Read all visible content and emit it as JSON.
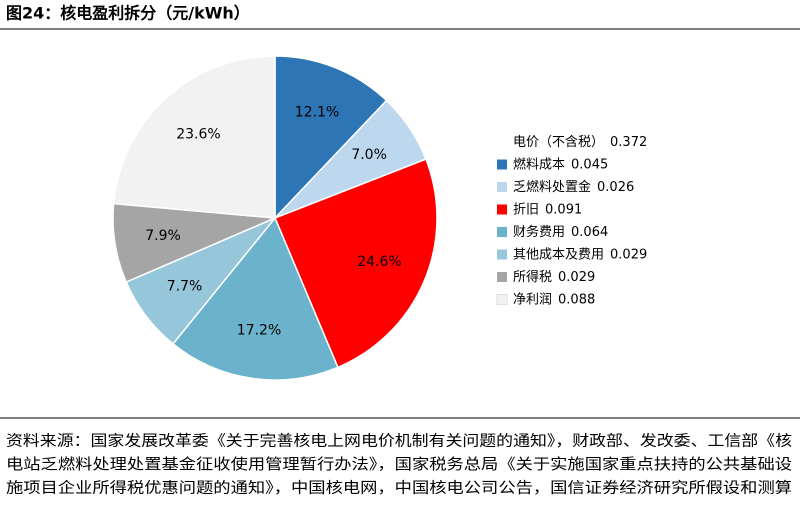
{
  "chart_data": {
    "type": "pie",
    "title": "图24：核电盈利拆分（元/kWh）",
    "total_label": "电价（不含税）",
    "total": 0.372,
    "categories": [
      "燃料成本",
      "乏燃料处置金",
      "折旧",
      "财务费用",
      "其他成本及费用",
      "所得税",
      "净利润"
    ],
    "amounts": [
      0.045,
      0.026,
      0.091,
      0.064,
      0.029,
      0.029,
      0.088
    ],
    "values": [
      12.1,
      7.0,
      24.6,
      17.2,
      7.7,
      7.9,
      23.6
    ],
    "value_labels": [
      "12.1%",
      "7.0%",
      "24.6%",
      "17.2%",
      "7.7%",
      "7.9%",
      "23.6%"
    ],
    "colors": [
      "#2e75b6",
      "#bdd7ee",
      "#ff0000",
      "#6bb2cc",
      "#95c6d9",
      "#a5a5a5",
      "#f2f2f2"
    ],
    "legend": "right",
    "source": [
      "资料来源：国家发展改革委《关于完善核电上网电价机制有关问题的通知》，财政部、发改委、工信部《核",
      "电站乏燃料处理处置基金征收使用管理暂行办法》，国家税务总局《关于实施国家重点扶持的公共基础设",
      "施项目企业所得税优惠问题的通知》，中国核电网，中国核电公司公告，国信证券经济研究所假设和测算"
    ]
  }
}
